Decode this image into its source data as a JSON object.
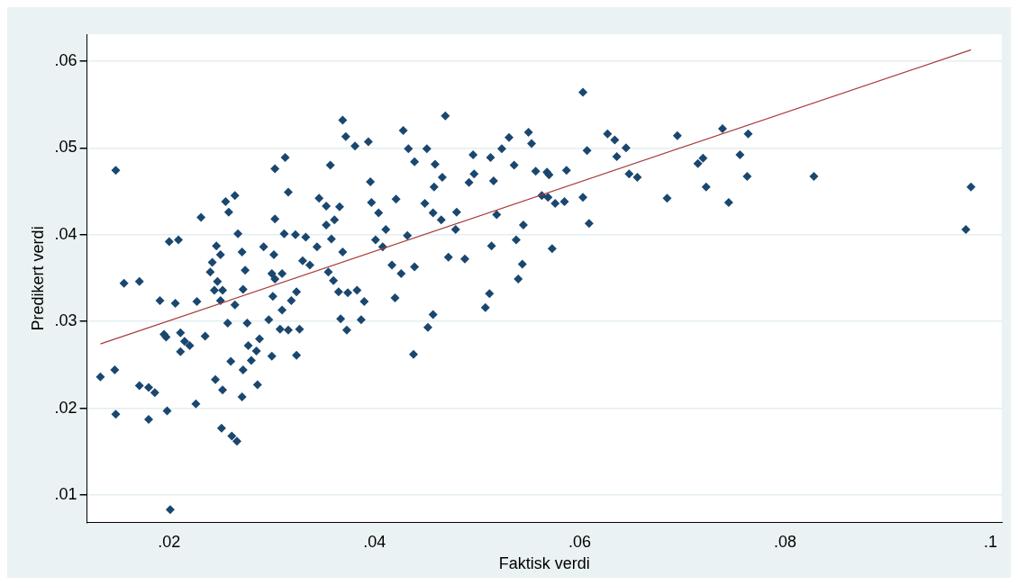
{
  "chart_data": {
    "type": "scatter",
    "xlabel": "Faktisk verdi",
    "ylabel": "Predikert verdi",
    "xlim": [
      0.012,
      0.1011
    ],
    "ylim": [
      0.0068,
      0.0631
    ],
    "xticks": [
      {
        "value": 0.02,
        "label": ".02"
      },
      {
        "value": 0.04,
        "label": ".04"
      },
      {
        "value": 0.06,
        "label": ".06"
      },
      {
        "value": 0.08,
        "label": ".08"
      },
      {
        "value": 0.1,
        "label": ".1"
      }
    ],
    "yticks": [
      {
        "value": 0.01,
        "label": ".01"
      },
      {
        "value": 0.02,
        "label": ".02"
      },
      {
        "value": 0.03,
        "label": ".03"
      },
      {
        "value": 0.04,
        "label": ".04"
      },
      {
        "value": 0.05,
        "label": ".05"
      },
      {
        "value": 0.06,
        "label": ".06"
      }
    ],
    "grid": "y",
    "legend": false,
    "series": [
      {
        "type": "scatter",
        "marker": "diamond",
        "color": "#1a476f",
        "x": [
          0.0133,
          0.0147,
          0.0148,
          0.0148,
          0.0156,
          0.0171,
          0.0171,
          0.018,
          0.018,
          0.0186,
          0.0191,
          0.0195,
          0.0197,
          0.02,
          0.0209,
          0.0206,
          0.0198,
          0.0201,
          0.0211,
          0.0211,
          0.0215,
          0.022,
          0.0226,
          0.0231,
          0.0227,
          0.0235,
          0.024,
          0.0242,
          0.0244,
          0.0247,
          0.0245,
          0.0252,
          0.025,
          0.0255,
          0.0264,
          0.0251,
          0.0261,
          0.0266,
          0.025,
          0.0246,
          0.0252,
          0.0257,
          0.0264,
          0.0272,
          0.026,
          0.0272,
          0.028,
          0.0271,
          0.0286,
          0.0271,
          0.0274,
          0.0277,
          0.0258,
          0.0267,
          0.0276,
          0.0285,
          0.03,
          0.0288,
          0.0297,
          0.0308,
          0.0301,
          0.0303,
          0.031,
          0.0319,
          0.0292,
          0.0302,
          0.0303,
          0.0312,
          0.03,
          0.0324,
          0.031,
          0.033,
          0.0337,
          0.0316,
          0.0324,
          0.0327,
          0.0303,
          0.0313,
          0.0316,
          0.0323,
          0.0333,
          0.0344,
          0.0353,
          0.0346,
          0.0358,
          0.0361,
          0.0353,
          0.0357,
          0.0366,
          0.0369,
          0.0355,
          0.036,
          0.0365,
          0.0374,
          0.0367,
          0.0373,
          0.0383,
          0.0387,
          0.039,
          0.0369,
          0.0372,
          0.0381,
          0.0394,
          0.0396,
          0.0397,
          0.0404,
          0.0411,
          0.0408,
          0.0417,
          0.0426,
          0.0421,
          0.0401,
          0.0428,
          0.0433,
          0.0439,
          0.0451,
          0.0459,
          0.0458,
          0.0449,
          0.0457,
          0.0465,
          0.0479,
          0.0439,
          0.0432,
          0.042,
          0.0438,
          0.0452,
          0.0457,
          0.0469,
          0.0466,
          0.048,
          0.0472,
          0.0488,
          0.0492,
          0.0497,
          0.0496,
          0.0516,
          0.0513,
          0.0514,
          0.0512,
          0.0508,
          0.0519,
          0.0524,
          0.0531,
          0.0536,
          0.054,
          0.0544,
          0.0538,
          0.0545,
          0.055,
          0.0553,
          0.0557,
          0.0568,
          0.0569,
          0.0576,
          0.057,
          0.0587,
          0.0563,
          0.0585,
          0.0603,
          0.0609,
          0.0573,
          0.0603,
          0.0627,
          0.0634,
          0.0607,
          0.0645,
          0.0636,
          0.0648,
          0.0656,
          0.0685,
          0.0695,
          0.0715,
          0.072,
          0.0723,
          0.0739,
          0.0745,
          0.0756,
          0.0764,
          0.0763,
          0.0828,
          0.0981,
          0.0976
        ],
        "values": [
          0.0236,
          0.0244,
          0.0474,
          0.0193,
          0.0344,
          0.0346,
          0.0226,
          0.0224,
          0.0187,
          0.0218,
          0.0324,
          0.0285,
          0.0282,
          0.0392,
          0.0394,
          0.0321,
          0.0197,
          0.0083,
          0.0265,
          0.0287,
          0.0277,
          0.0272,
          0.0205,
          0.042,
          0.0323,
          0.0283,
          0.0357,
          0.0368,
          0.0336,
          0.0346,
          0.0233,
          0.0221,
          0.0324,
          0.0438,
          0.0445,
          0.0177,
          0.0168,
          0.0162,
          0.0377,
          0.0387,
          0.0336,
          0.0298,
          0.0319,
          0.0337,
          0.0254,
          0.0244,
          0.0255,
          0.0213,
          0.0227,
          0.038,
          0.0359,
          0.0272,
          0.0426,
          0.0401,
          0.0298,
          0.0266,
          0.026,
          0.028,
          0.0302,
          0.0291,
          0.0329,
          0.0349,
          0.0313,
          0.0324,
          0.0386,
          0.0377,
          0.0418,
          0.0401,
          0.0355,
          0.0334,
          0.0355,
          0.037,
          0.0365,
          0.029,
          0.0261,
          0.0291,
          0.0476,
          0.0489,
          0.0449,
          0.04,
          0.0397,
          0.0386,
          0.0411,
          0.0442,
          0.0395,
          0.0417,
          0.0433,
          0.048,
          0.0432,
          0.038,
          0.0357,
          0.0347,
          0.0334,
          0.0333,
          0.0303,
          0.029,
          0.0336,
          0.0302,
          0.0323,
          0.0532,
          0.0513,
          0.0502,
          0.0507,
          0.0461,
          0.0437,
          0.0425,
          0.0406,
          0.0386,
          0.0365,
          0.0355,
          0.0441,
          0.0394,
          0.052,
          0.0499,
          0.0484,
          0.0499,
          0.0481,
          0.0455,
          0.0436,
          0.0425,
          0.0417,
          0.0406,
          0.0363,
          0.0399,
          0.0327,
          0.0262,
          0.0293,
          0.0308,
          0.0537,
          0.0466,
          0.0426,
          0.0374,
          0.0372,
          0.046,
          0.047,
          0.0492,
          0.0462,
          0.0489,
          0.0387,
          0.0332,
          0.0316,
          0.0423,
          0.0499,
          0.0512,
          0.048,
          0.0349,
          0.0366,
          0.0394,
          0.0411,
          0.0518,
          0.0505,
          0.0473,
          0.0472,
          0.0443,
          0.0436,
          0.0469,
          0.0474,
          0.0445,
          0.0438,
          0.0443,
          0.0413,
          0.0384,
          0.0564,
          0.0516,
          0.0509,
          0.0497,
          0.05,
          0.049,
          0.047,
          0.0466,
          0.0442,
          0.0514,
          0.0482,
          0.0488,
          0.0455,
          0.0522,
          0.0437,
          0.0492,
          0.0516,
          0.0467,
          0.0467,
          0.0455,
          0.0406
        ]
      },
      {
        "type": "line",
        "marker": "none",
        "color": "#a83a3a",
        "x": [
          0.0133,
          0.0981
        ],
        "values": [
          0.0274,
          0.0613
        ]
      }
    ]
  }
}
